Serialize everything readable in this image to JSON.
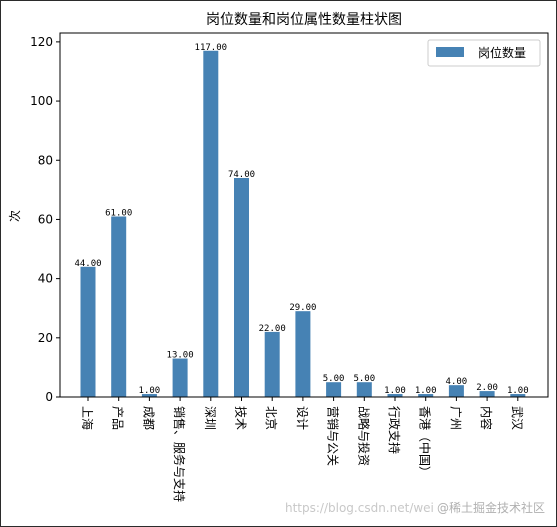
{
  "chart_data": {
    "type": "bar",
    "title": "岗位数量和岗位属性数量柱状图",
    "ylabel": "次",
    "xlabel": "",
    "ylim": [
      0,
      123
    ],
    "yticks": [
      0,
      20,
      40,
      60,
      80,
      100,
      120
    ],
    "legend_position": "top-right",
    "grid": false,
    "bar_color": "#4682b4",
    "series": [
      {
        "name": "岗位数量",
        "values": [
          44,
          61,
          1,
          13,
          117,
          74,
          22,
          29,
          5,
          5,
          1,
          1,
          4,
          2,
          1
        ]
      }
    ],
    "categories": [
      "上海",
      "产品",
      "成都",
      "销售、服务与支持",
      "深圳",
      "技术",
      "北京",
      "设计",
      "营销与公关",
      "战略与投资",
      "行政支持",
      "香港（中国）",
      "广州",
      "内容",
      "武汉"
    ],
    "data_labels": [
      "44.00",
      "61.00",
      "1.00",
      "13.00",
      "117.00",
      "74.00",
      "22.00",
      "29.00",
      "5.00",
      "5.00",
      "1.00",
      "1.00",
      "4.00",
      "2.00",
      "1.00"
    ]
  },
  "watermark": {
    "url": "https://blog.csdn.net/wei",
    "site": "@稀土掘金技术社区"
  }
}
